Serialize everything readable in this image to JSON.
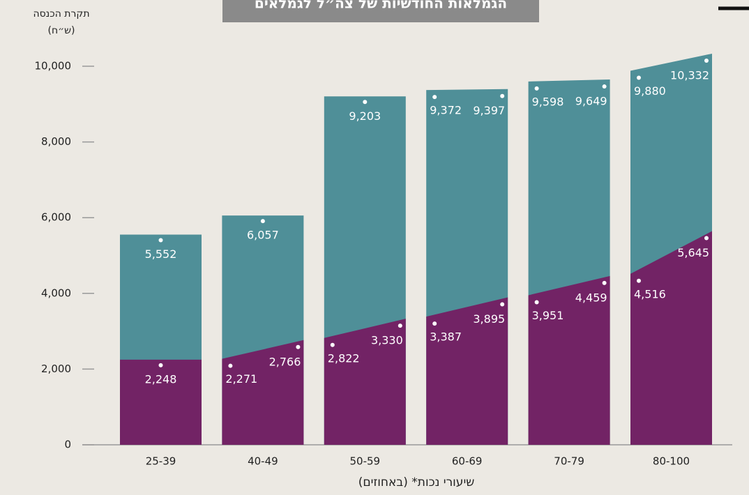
{
  "chart_data": {
    "type": "trapezoid-bar",
    "title": "הגמלאות החודשיות של צה״ל לגמלאים",
    "y_label": [
      "תקרת הכנסה",
      "(ש״ח)"
    ],
    "x_label": "שיעורי נכות* (באחוזים)",
    "categories": [
      "25-39",
      "40-49",
      "50-59",
      "60-69",
      "70-79",
      "80-100"
    ],
    "ylim": [
      0,
      10000
    ],
    "yticks": [
      0,
      {
        "value": 2000,
        "label": "2,000"
      },
      {
        "value": 4000,
        "label": "4,000"
      },
      {
        "value": 6000,
        "label": "6,000"
      },
      {
        "value": 8000,
        "label": "8,000"
      },
      {
        "value": 10000,
        "label": "10,000"
      }
    ],
    "series": [
      {
        "color": "#4f8f98",
        "start": [
          5552,
          6057,
          9203,
          9372,
          9598,
          9880
        ],
        "end": [
          null,
          null,
          null,
          9397,
          9649,
          10332
        ],
        "start_labels": [
          "5,552",
          "6,057",
          "9,203",
          "9,372",
          "9,598",
          "9,880"
        ],
        "end_labels": [
          null,
          null,
          null,
          "9,397",
          "9,649",
          "10,332"
        ]
      },
      {
        "color": "#722365",
        "start": [
          2248,
          2271,
          2822,
          3387,
          3951,
          4516
        ],
        "end": [
          null,
          2766,
          3330,
          3895,
          4459,
          5645
        ],
        "start_labels": [
          "2,248",
          "2,271",
          "2,822",
          "3,387",
          "3,951",
          "4,516"
        ],
        "end_labels": [
          null,
          "2,766",
          "3,330",
          "3,895",
          "4,459",
          "5,645"
        ]
      }
    ]
  }
}
